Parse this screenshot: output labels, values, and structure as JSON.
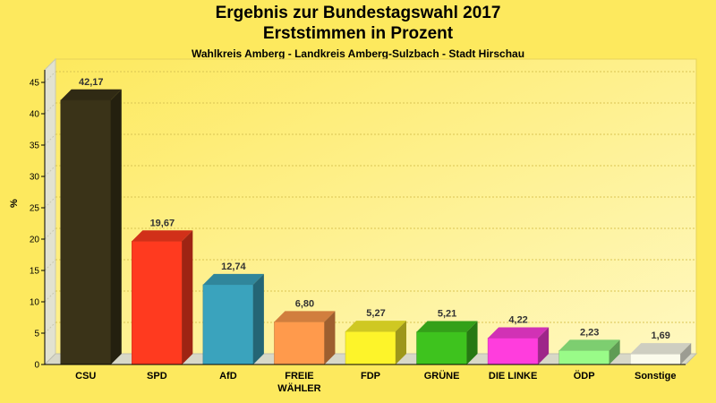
{
  "chart_data": {
    "type": "bar",
    "title": "Ergebnis zur Bundestagswahl 2017",
    "subtitle": "Erststimmen in Prozent",
    "subtitle2": "Wahlkreis Amberg - Landkreis Amberg-Sulzbach - Stadt Hirschau",
    "ylabel": "%",
    "ylim": [
      0,
      47
    ],
    "yticks": [
      0,
      5,
      10,
      15,
      20,
      25,
      30,
      35,
      40,
      45
    ],
    "grid": true,
    "categories": [
      [
        "CSU"
      ],
      [
        "SPD"
      ],
      [
        "AfD"
      ],
      [
        "FREIE",
        "WÄHLER"
      ],
      [
        "FDP"
      ],
      [
        "GRÜNE"
      ],
      [
        "DIE LINKE"
      ],
      [
        "ÖDP"
      ],
      [
        "Sonstige"
      ]
    ],
    "values": [
      42.17,
      19.67,
      12.74,
      6.8,
      5.27,
      5.21,
      4.22,
      2.23,
      1.69
    ],
    "value_labels": [
      "42,17",
      "19,67",
      "12,74",
      "6,80",
      "5,27",
      "5,21",
      "4,22",
      "2,23",
      "1,69"
    ],
    "colors": [
      "#3a3318",
      "#ff3a1f",
      "#3aa3bd",
      "#ff9a4c",
      "#fdf42a",
      "#3ec31e",
      "#ff3ddd",
      "#99fb88",
      "#fbfbeb"
    ]
  }
}
